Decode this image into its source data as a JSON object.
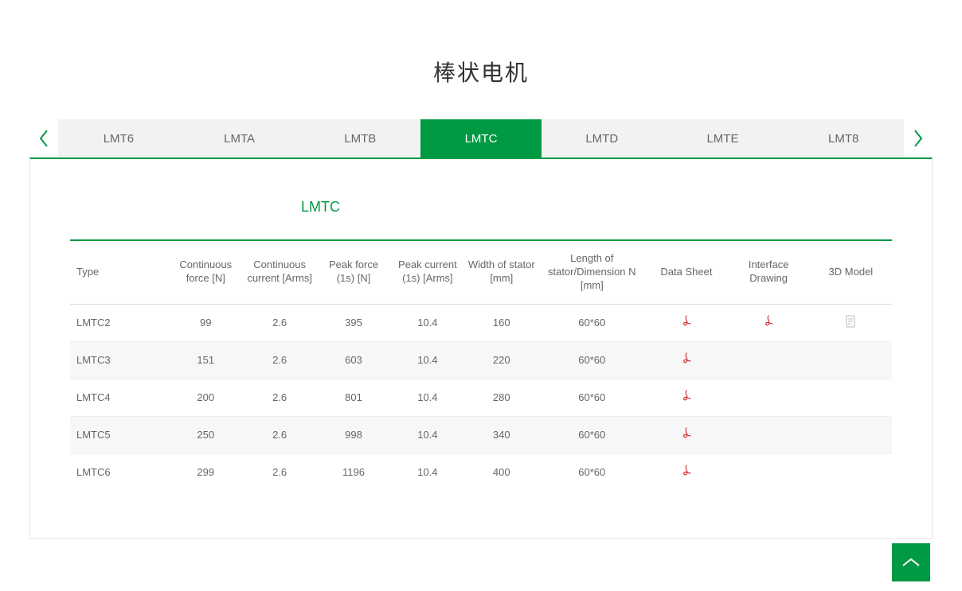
{
  "page_title": "棒状电机",
  "tabs": {
    "items": [
      "LMT6",
      "LMTA",
      "LMTB",
      "LMTC",
      "LMTD",
      "LMTE",
      "LMT8"
    ],
    "active_index": 3
  },
  "section_title": "LMTC",
  "table": {
    "columns": [
      "Type",
      "Continuous force [N]",
      "Continuous current [Arms]",
      "Peak force (1s) [N]",
      "Peak current (1s) [Arms]",
      "Width of stator [mm]",
      "Length of stator/Dimension N [mm]",
      "Data Sheet",
      "Interface Drawing",
      "3D Model"
    ],
    "rows": [
      {
        "type": "LMTC2",
        "cf": "99",
        "cc": "2.6",
        "pf": "395",
        "pc": "10.4",
        "w": "160",
        "l": "60*60",
        "ds": true,
        "id": true,
        "m3d": true
      },
      {
        "type": "LMTC3",
        "cf": "151",
        "cc": "2.6",
        "pf": "603",
        "pc": "10.4",
        "w": "220",
        "l": "60*60",
        "ds": true,
        "id": false,
        "m3d": false
      },
      {
        "type": "LMTC4",
        "cf": "200",
        "cc": "2.6",
        "pf": "801",
        "pc": "10.4",
        "w": "280",
        "l": "60*60",
        "ds": true,
        "id": false,
        "m3d": false
      },
      {
        "type": "LMTC5",
        "cf": "250",
        "cc": "2.6",
        "pf": "998",
        "pc": "10.4",
        "w": "340",
        "l": "60*60",
        "ds": true,
        "id": false,
        "m3d": false
      },
      {
        "type": "LMTC6",
        "cf": "299",
        "cc": "2.6",
        "pf": "1196",
        "pc": "10.4",
        "w": "400",
        "l": "60*60",
        "ds": true,
        "id": false,
        "m3d": false
      }
    ]
  },
  "colors": {
    "accent": "#009944",
    "text": "#666666",
    "stripe": "#f7f7f7",
    "border": "#e5e5e5",
    "pdf": "#cc3333"
  }
}
